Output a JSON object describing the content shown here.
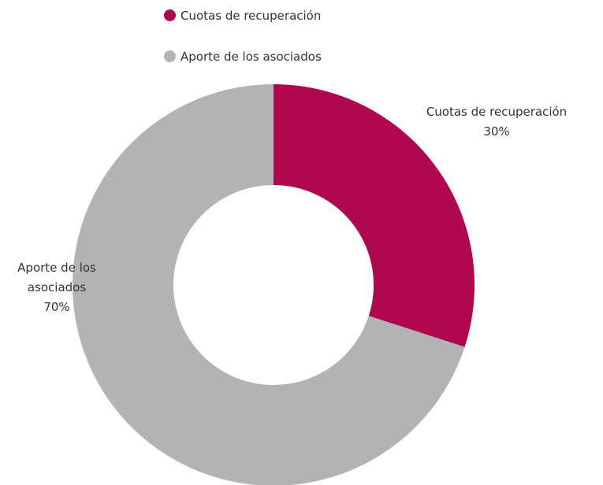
{
  "chart_data": {
    "type": "donut",
    "categories": [
      "Cuotas de recuperación",
      "Aporte de los asociados"
    ],
    "values": [
      30,
      70
    ],
    "value_labels": [
      "30%",
      "70%"
    ],
    "colors": [
      "#b0084e",
      "#b3b3b3"
    ],
    "legend": "top"
  }
}
